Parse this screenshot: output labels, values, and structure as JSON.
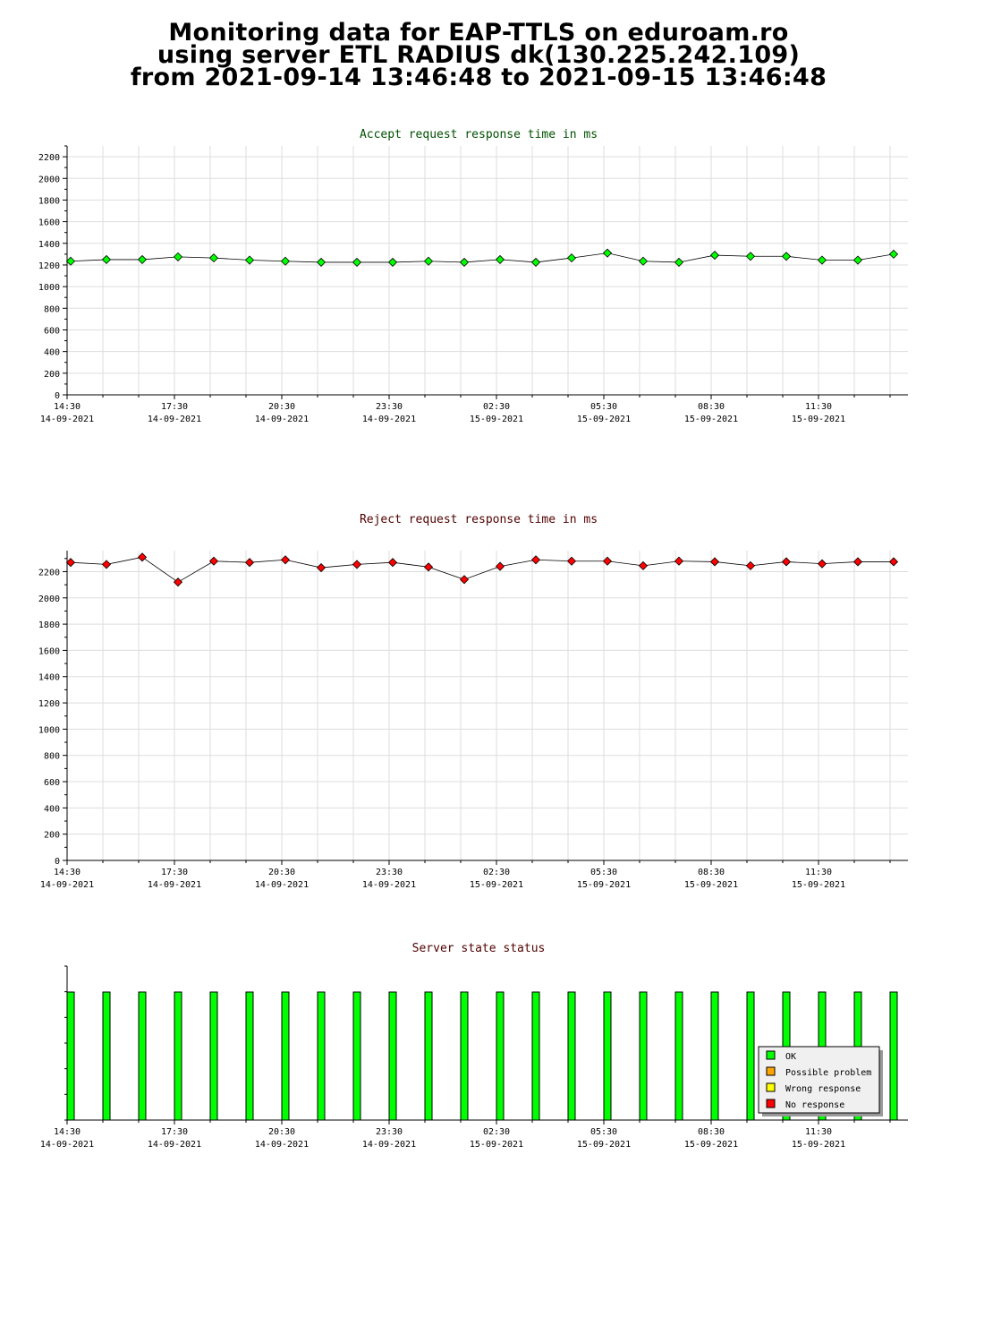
{
  "page_title": {
    "line1": "Monitoring data for EAP-TTLS on eduroam.ro",
    "line2": "using server ETL RADIUS dk(130.225.242.109)",
    "line3": "from 2021-09-14 13:46:48 to 2021-09-15 13:46:48"
  },
  "colors": {
    "accept_title": "#005000",
    "reject_title": "#500000",
    "status_title": "#500000",
    "accept_marker": "#00ff00",
    "reject_marker": "#ff0000",
    "grid": "#dddddd",
    "ok": "#00ff00",
    "possible_problem": "#ffa500",
    "wrong_response": "#ffff00",
    "no_response": "#ff0000"
  },
  "chart_data": [
    {
      "type": "line",
      "title": "Accept request response time in ms",
      "ylim": [
        0,
        2300
      ],
      "y_ticks": [
        0,
        200,
        400,
        600,
        800,
        1000,
        1200,
        1400,
        1600,
        1800,
        2000,
        2200
      ],
      "x_tick_labels": [
        {
          "time": "14:30",
          "date": "14-09-2021"
        },
        {
          "time": "17:30",
          "date": "14-09-2021"
        },
        {
          "time": "20:30",
          "date": "14-09-2021"
        },
        {
          "time": "23:30",
          "date": "14-09-2021"
        },
        {
          "time": "02:30",
          "date": "15-09-2021"
        },
        {
          "time": "05:30",
          "date": "15-09-2021"
        },
        {
          "time": "08:30",
          "date": "15-09-2021"
        },
        {
          "time": "11:30",
          "date": "15-09-2021"
        }
      ],
      "values": [
        1235,
        1250,
        1250,
        1275,
        1265,
        1245,
        1235,
        1225,
        1225,
        1225,
        1235,
        1225,
        1250,
        1225,
        1265,
        1310,
        1235,
        1225,
        1290,
        1280,
        1280,
        1245,
        1245,
        1300
      ],
      "grid": true
    },
    {
      "type": "line",
      "title": "Reject request response time in ms",
      "ylim": [
        0,
        2360
      ],
      "y_ticks": [
        0,
        200,
        400,
        600,
        800,
        1000,
        1200,
        1400,
        1600,
        1800,
        2000,
        2200
      ],
      "x_tick_labels": [
        {
          "time": "14:30",
          "date": "14-09-2021"
        },
        {
          "time": "17:30",
          "date": "14-09-2021"
        },
        {
          "time": "20:30",
          "date": "14-09-2021"
        },
        {
          "time": "23:30",
          "date": "14-09-2021"
        },
        {
          "time": "02:30",
          "date": "15-09-2021"
        },
        {
          "time": "05:30",
          "date": "15-09-2021"
        },
        {
          "time": "08:30",
          "date": "15-09-2021"
        },
        {
          "time": "11:30",
          "date": "15-09-2021"
        }
      ],
      "values": [
        2270,
        2255,
        2310,
        2120,
        2280,
        2270,
        2290,
        2230,
        2255,
        2270,
        2235,
        2140,
        2240,
        2290,
        2280,
        2280,
        2245,
        2280,
        2275,
        2245,
        2275,
        2260,
        2275,
        2275
      ],
      "grid": true
    },
    {
      "type": "bar",
      "title": "Server state status",
      "x_tick_labels": [
        {
          "time": "14:30",
          "date": "14-09-2021"
        },
        {
          "time": "17:30",
          "date": "14-09-2021"
        },
        {
          "time": "20:30",
          "date": "14-09-2021"
        },
        {
          "time": "23:30",
          "date": "14-09-2021"
        },
        {
          "time": "02:30",
          "date": "15-09-2021"
        },
        {
          "time": "05:30",
          "date": "15-09-2021"
        },
        {
          "time": "08:30",
          "date": "15-09-2021"
        },
        {
          "time": "11:30",
          "date": "15-09-2021"
        }
      ],
      "states": [
        "OK",
        "OK",
        "OK",
        "OK",
        "OK",
        "OK",
        "OK",
        "OK",
        "OK",
        "OK",
        "OK",
        "OK",
        "OK",
        "OK",
        "OK",
        "OK",
        "OK",
        "OK",
        "OK",
        "OK",
        "OK",
        "OK",
        "OK",
        "OK"
      ],
      "legend_placement": "bottom-right",
      "legend": [
        {
          "label": "OK",
          "color": "#00ff00"
        },
        {
          "label": "Possible problem",
          "color": "#ffa500"
        },
        {
          "label": "Wrong response",
          "color": "#ffff00"
        },
        {
          "label": "No response",
          "color": "#ff0000"
        }
      ]
    }
  ]
}
